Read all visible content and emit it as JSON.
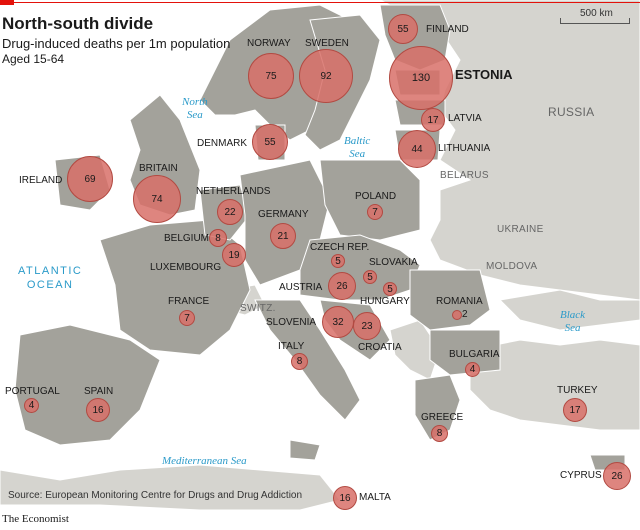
{
  "header": {
    "title": "North-south divide",
    "subtitle": "Drug-induced deaths per 1m population",
    "subtitle2": "Aged 15-64"
  },
  "scale": {
    "label": "500 km"
  },
  "source": "Source: European Monitoring Centre for Drugs and Drug Addiction",
  "brand": "The Economist",
  "colors": {
    "land_highlight": "#a3a29b",
    "land_other": "#d5d4cf",
    "sea": "#ffffff",
    "bubble": "#d87068",
    "bubble_border": "#b24a42",
    "water_label": "#2a9ac9",
    "brand_red": "#e3120b"
  },
  "seas": {
    "north_sea": "North\nSea",
    "baltic_sea": "Baltic\nSea",
    "atlantic": "ATLANTIC\nOCEAN",
    "black_sea": "Black\nSea",
    "mediterranean": "Mediterranean Sea"
  },
  "regions": {
    "russia": "RUSSIA",
    "belarus": "BELARUS",
    "ukraine": "UKRAINE",
    "moldova": "MOLDOVA",
    "switzerland": "SWITZ."
  },
  "countries": {
    "finland": {
      "name": "FINLAND",
      "value": "55"
    },
    "norway": {
      "name": "NORWAY",
      "value": "75"
    },
    "sweden": {
      "name": "SWEDEN",
      "value": "92"
    },
    "estonia": {
      "name": "ESTONIA",
      "value": "130"
    },
    "latvia": {
      "name": "LATVIA",
      "value": "17"
    },
    "lithuania": {
      "name": "LITHUANIA",
      "value": "44"
    },
    "denmark": {
      "name": "DENMARK",
      "value": "55"
    },
    "ireland": {
      "name": "IRELAND",
      "value": "69"
    },
    "britain": {
      "name": "BRITAIN",
      "value": "74"
    },
    "netherlands": {
      "name": "NETHERLANDS",
      "value": "22"
    },
    "belgium": {
      "name": "BELGIUM",
      "value": "8"
    },
    "luxembourg": {
      "name": "LUXEMBOURG",
      "value": "19"
    },
    "germany": {
      "name": "GERMANY",
      "value": "21"
    },
    "poland": {
      "name": "POLAND",
      "value": "7"
    },
    "czech": {
      "name": "CZECH REP.",
      "value": "5"
    },
    "slovakia": {
      "name": "SLOVAKIA",
      "value": "5"
    },
    "hungary": {
      "name": "HUNGARY",
      "value": "5"
    },
    "austria": {
      "name": "AUSTRIA",
      "value": "26"
    },
    "slovenia": {
      "name": "SLOVENIA",
      "value": "32"
    },
    "croatia": {
      "name": "CROATIA",
      "value": "23"
    },
    "france": {
      "name": "FRANCE",
      "value": "7"
    },
    "italy": {
      "name": "ITALY",
      "value": "8"
    },
    "romania": {
      "name": "ROMANIA",
      "value": "2"
    },
    "bulgaria": {
      "name": "BULGARIA",
      "value": "4"
    },
    "portugal": {
      "name": "PORTUGAL",
      "value": "4"
    },
    "spain": {
      "name": "SPAIN",
      "value": "16"
    },
    "greece": {
      "name": "GREECE",
      "value": "8"
    },
    "turkey": {
      "name": "TURKEY",
      "value": "17"
    },
    "cyprus": {
      "name": "CYPRUS",
      "value": "26"
    },
    "malta": {
      "name": "MALTA",
      "value": "16"
    }
  }
}
